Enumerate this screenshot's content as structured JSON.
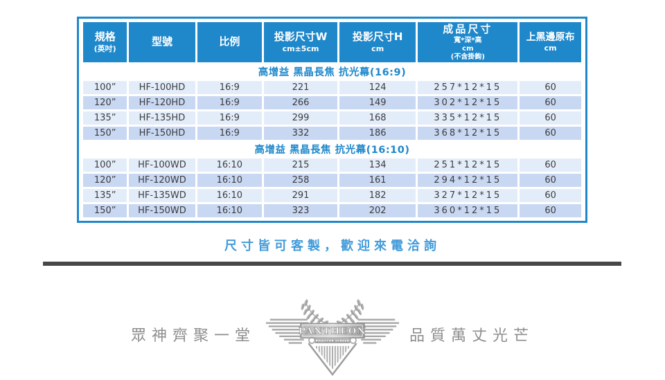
{
  "table": {
    "columns": [
      {
        "lines": [
          "規格",
          "(英吋)"
        ]
      },
      {
        "lines": [
          "型號"
        ]
      },
      {
        "lines": [
          "比例"
        ]
      },
      {
        "lines": [
          "投影尺寸W",
          "cm±5cm"
        ]
      },
      {
        "lines": [
          "投影尺寸H",
          "cm"
        ]
      },
      {
        "lines": [
          "成品尺寸",
          "寬*深*高",
          "cm",
          "(不含掛鉤)"
        ]
      },
      {
        "lines": [
          "上黑邊原布",
          "cm"
        ]
      }
    ],
    "sections": [
      {
        "title": "高增益 黑晶長焦 抗光幕(16:9)",
        "rows": [
          [
            "100”",
            "HF-100HD",
            "16:9",
            "221",
            "124",
            "257*12*15",
            "60"
          ],
          [
            "120”",
            "HF-120HD",
            "16:9",
            "266",
            "149",
            "302*12*15",
            "60"
          ],
          [
            "135”",
            "HF-135HD",
            "16:9",
            "299",
            "168",
            "335*12*15",
            "60"
          ],
          [
            "150”",
            "HF-150HD",
            "16:9",
            "332",
            "186",
            "368*12*15",
            "60"
          ]
        ]
      },
      {
        "title": "高增益 黑晶長焦 抗光幕(16:10)",
        "rows": [
          [
            "100”",
            "HF-100WD",
            "16:10",
            "215",
            "134",
            "251*12*15",
            "60"
          ],
          [
            "120”",
            "HF-120WD",
            "16:10",
            "258",
            "161",
            "294*12*15",
            "60"
          ],
          [
            "135”",
            "HF-135WD",
            "16:10",
            "291",
            "182",
            "327*12*15",
            "60"
          ],
          [
            "150”",
            "HF-150WD",
            "16:10",
            "323",
            "202",
            "360*12*15",
            "60"
          ]
        ]
      }
    ]
  },
  "tagline": "尺寸皆可客製，歡迎來電洽詢",
  "footer": {
    "left_text": "眾神齊聚一堂",
    "right_text": "品質萬丈光芒",
    "logo_title": "PANTHEON",
    "logo_subtitle": "PROJECTOR SCREENS"
  },
  "colors": {
    "accent_blue": "#1f88cb",
    "row_light": "#e3edfa",
    "row_dark": "#c8d7f2",
    "cell_text": "#3c3c3c",
    "tagline_blue": "#429bda",
    "divider_gray": "#474747",
    "footer_gray": "#8e8e8e"
  }
}
